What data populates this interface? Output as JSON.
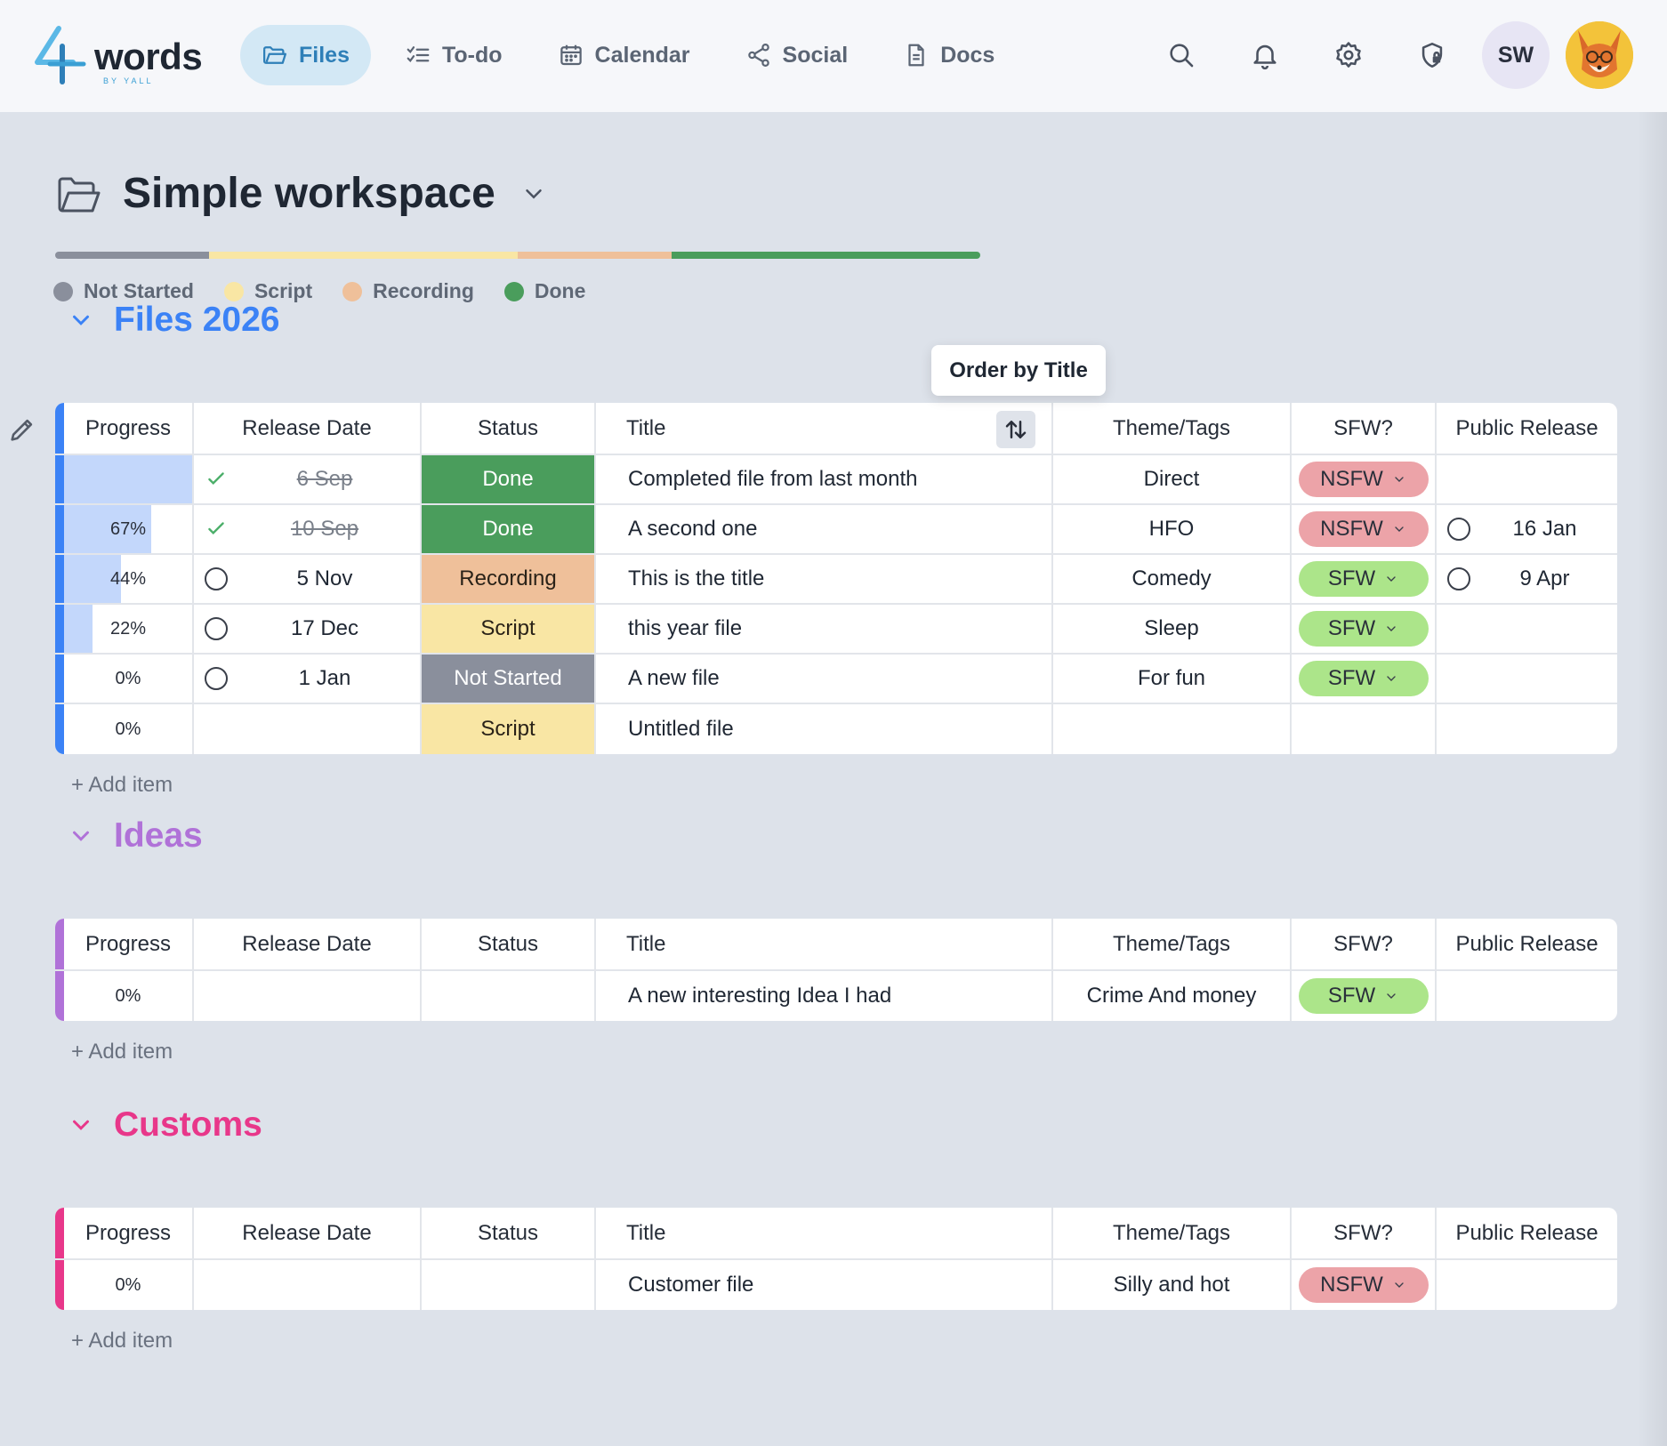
{
  "app": {
    "logo_text": "words",
    "logo_sub": "BY YALL"
  },
  "nav": {
    "items": [
      {
        "label": "Files",
        "icon": "folder-icon",
        "active": true
      },
      {
        "label": "To-do",
        "icon": "checklist-icon",
        "active": false
      },
      {
        "label": "Calendar",
        "icon": "calendar-icon",
        "active": false
      },
      {
        "label": "Social",
        "icon": "share-icon",
        "active": false
      },
      {
        "label": "Docs",
        "icon": "document-icon",
        "active": false
      }
    ]
  },
  "toolbar": {
    "avatar_initials": "SW"
  },
  "workspace": {
    "title": "Simple workspace",
    "progress_segments": [
      {
        "status": "Not Started",
        "fraction": 0.1667,
        "color": "#8a8f9c"
      },
      {
        "status": "Script",
        "fraction": 0.3333,
        "color": "#f9e6a4"
      },
      {
        "status": "Recording",
        "fraction": 0.1667,
        "color": "#efc09a"
      },
      {
        "status": "Done",
        "fraction": 0.3333,
        "color": "#4a9d5c"
      }
    ],
    "legend": [
      {
        "label": "Not Started",
        "color": "#8a8f9c"
      },
      {
        "label": "Script",
        "color": "#f9e6a4"
      },
      {
        "label": "Recording",
        "color": "#efc09a"
      },
      {
        "label": "Done",
        "color": "#4a9d5c"
      }
    ]
  },
  "columns": {
    "progress": "Progress",
    "release_date": "Release Date",
    "status": "Status",
    "title": "Title",
    "theme": "Theme/Tags",
    "sfw": "SFW?",
    "public_release": "Public Release"
  },
  "tooltip": {
    "sort_title": "Order by Title"
  },
  "add_item_label": "+ Add item",
  "groups": [
    {
      "title": "Files 2026",
      "color": "#3b82f6",
      "rows": [
        {
          "progress_label": "",
          "progress": 1.0,
          "date": "6 Sep",
          "date_state": "done",
          "status": "Done",
          "status_kind": "done",
          "title": "Completed file from last month",
          "theme": "Direct",
          "sfw": "NSFW",
          "pub_date": "",
          "pub_circle": false
        },
        {
          "progress_label": "67%",
          "progress": 0.67,
          "date": "10 Sep",
          "date_state": "done",
          "status": "Done",
          "status_kind": "done",
          "title": "A second one",
          "theme": "HFO",
          "sfw": "NSFW",
          "pub_date": "16 Jan",
          "pub_circle": true
        },
        {
          "progress_label": "44%",
          "progress": 0.44,
          "date": "5 Nov",
          "date_state": "open",
          "status": "Recording",
          "status_kind": "rec",
          "title": "This is the title",
          "theme": "Comedy",
          "sfw": "SFW",
          "pub_date": "9 Apr",
          "pub_circle": true
        },
        {
          "progress_label": "22%",
          "progress": 0.22,
          "date": "17 Dec",
          "date_state": "open",
          "status": "Script",
          "status_kind": "script",
          "title": "this year file",
          "theme": "Sleep",
          "sfw": "SFW",
          "pub_date": "",
          "pub_circle": false
        },
        {
          "progress_label": "0%",
          "progress": 0,
          "date": "1 Jan",
          "date_state": "open",
          "status": "Not Started",
          "status_kind": "ns",
          "title": "A new file",
          "theme": "For fun",
          "sfw": "SFW",
          "pub_date": "",
          "pub_circle": false
        },
        {
          "progress_label": "0%",
          "progress": 0,
          "date": "",
          "date_state": "none",
          "status": "Script",
          "status_kind": "script",
          "title": "Untitled file",
          "theme": "",
          "sfw": "",
          "pub_date": "",
          "pub_circle": false
        }
      ]
    },
    {
      "title": "Ideas",
      "color": "#b072d8",
      "rows": [
        {
          "progress_label": "0%",
          "progress": 0,
          "date": "",
          "date_state": "none",
          "status": "",
          "status_kind": "",
          "title": "A new interesting Idea I had",
          "theme": "Crime And money",
          "sfw": "SFW",
          "pub_date": "",
          "pub_circle": false
        }
      ]
    },
    {
      "title": "Customs",
      "color": "#e8378a",
      "rows": [
        {
          "progress_label": "0%",
          "progress": 0,
          "date": "",
          "date_state": "none",
          "status": "",
          "status_kind": "",
          "title": "Customer file",
          "theme": "Silly and hot",
          "sfw": "NSFW",
          "pub_date": "",
          "pub_circle": false
        }
      ]
    }
  ]
}
